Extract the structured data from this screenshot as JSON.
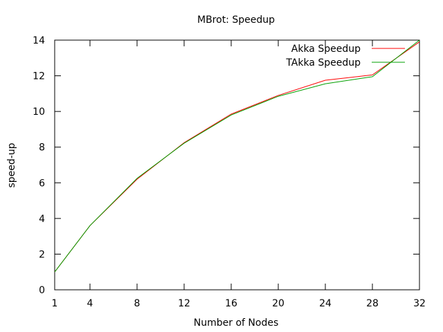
{
  "chart_data": {
    "type": "line",
    "title": "MBrot: Speedup",
    "xlabel": "Number of Nodes",
    "ylabel": "speed-up",
    "xlim": [
      1,
      32
    ],
    "ylim": [
      0,
      14
    ],
    "xticks": [
      1,
      4,
      8,
      12,
      16,
      20,
      24,
      28,
      32
    ],
    "yticks": [
      0,
      2,
      4,
      6,
      8,
      10,
      12,
      14
    ],
    "grid": false,
    "legend_position": "top-right",
    "x": [
      1,
      4,
      8,
      12,
      16,
      20,
      24,
      28,
      32
    ],
    "series": [
      {
        "name": "Akka Speedup",
        "color": "#ff0000",
        "values": [
          1.0,
          3.6,
          6.2,
          8.25,
          9.85,
          10.9,
          11.75,
          12.05,
          13.9
        ]
      },
      {
        "name": "TAkka Speedup",
        "color": "#00a000",
        "values": [
          1.0,
          3.6,
          6.25,
          8.22,
          9.8,
          10.85,
          11.55,
          11.95,
          14.0
        ]
      }
    ]
  }
}
